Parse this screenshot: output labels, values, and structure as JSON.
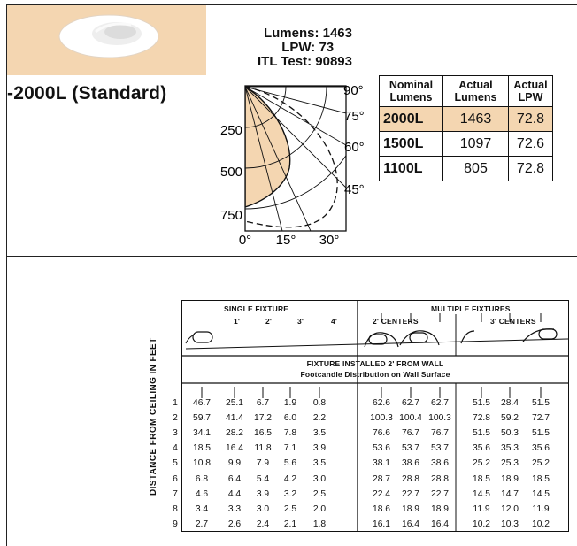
{
  "product": {
    "title": "-2000L (Standard)"
  },
  "photometry": {
    "lumens_label": "Lumens:",
    "lumens_value": "1463",
    "lpw_label": "LPW:",
    "lpw_value": "73",
    "itl_label": "ITL Test:",
    "itl_value": "90893"
  },
  "polar_chart": {
    "radial_labels": [
      "250",
      "500",
      "750"
    ],
    "angle_labels_right": [
      "90°",
      "75°",
      "60°",
      "45°"
    ],
    "angle_labels_bottom": [
      "0°",
      "15°",
      "30°"
    ],
    "fill_color": "#f4d6b1"
  },
  "lumen_table": {
    "headers": [
      "Nominal Lumens",
      "Actual Lumens",
      "Actual LPW"
    ],
    "rows": [
      {
        "name": "2000L",
        "lumens": "1463",
        "lpw": "72.8",
        "highlight": true
      },
      {
        "name": "1500L",
        "lumens": "1097",
        "lpw": "72.6",
        "highlight": false
      },
      {
        "name": "1100L",
        "lumens": "805",
        "lpw": "72.8",
        "highlight": false
      }
    ]
  },
  "footcandle": {
    "single_title": "SINGLE FIXTURE",
    "single_positions": [
      "1'",
      "2'",
      "3'",
      "4'"
    ],
    "multiple_title": "MULTIPLE FIXTURES",
    "multiple_groups": [
      "2' CENTERS",
      "3' CENTERS"
    ],
    "installed_title": "FIXTURE INSTALLED 2' FROM WALL",
    "installed_subtitle": "Footcandle Distribution on Wall Surface",
    "side_label": "DISTANCE FROM CEILING IN FEET",
    "distances": [
      "1",
      "2",
      "3",
      "4",
      "5",
      "6",
      "7",
      "8",
      "9"
    ],
    "single": [
      [
        "46.7",
        "25.1",
        "6.7",
        "1.9",
        "0.8"
      ],
      [
        "59.7",
        "41.4",
        "17.2",
        "6.0",
        "2.2"
      ],
      [
        "34.1",
        "28.2",
        "16.5",
        "7.8",
        "3.5"
      ],
      [
        "18.5",
        "16.4",
        "11.8",
        "7.1",
        "3.9"
      ],
      [
        "10.8",
        "9.9",
        "7.9",
        "5.6",
        "3.5"
      ],
      [
        "6.8",
        "6.4",
        "5.4",
        "4.2",
        "3.0"
      ],
      [
        "4.6",
        "4.4",
        "3.9",
        "3.2",
        "2.5"
      ],
      [
        "3.4",
        "3.3",
        "3.0",
        "2.5",
        "2.0"
      ],
      [
        "2.7",
        "2.6",
        "2.4",
        "2.1",
        "1.8"
      ]
    ],
    "centers2": [
      [
        "62.6",
        "62.7",
        "62.7"
      ],
      [
        "100.3",
        "100.4",
        "100.3"
      ],
      [
        "76.6",
        "76.7",
        "76.7"
      ],
      [
        "53.6",
        "53.7",
        "53.7"
      ],
      [
        "38.1",
        "38.6",
        "38.6"
      ],
      [
        "28.7",
        "28.8",
        "28.8"
      ],
      [
        "22.4",
        "22.7",
        "22.7"
      ],
      [
        "18.6",
        "18.9",
        "18.9"
      ],
      [
        "16.1",
        "16.4",
        "16.4"
      ]
    ],
    "centers3": [
      [
        "51.5",
        "28.4",
        "51.5"
      ],
      [
        "72.8",
        "59.2",
        "72.7"
      ],
      [
        "51.5",
        "50.3",
        "51.5"
      ],
      [
        "35.6",
        "35.3",
        "35.6"
      ],
      [
        "25.2",
        "25.3",
        "25.2"
      ],
      [
        "18.5",
        "18.9",
        "18.5"
      ],
      [
        "14.5",
        "14.7",
        "14.5"
      ],
      [
        "11.9",
        "12.0",
        "11.9"
      ],
      [
        "10.2",
        "10.3",
        "10.2"
      ]
    ]
  }
}
